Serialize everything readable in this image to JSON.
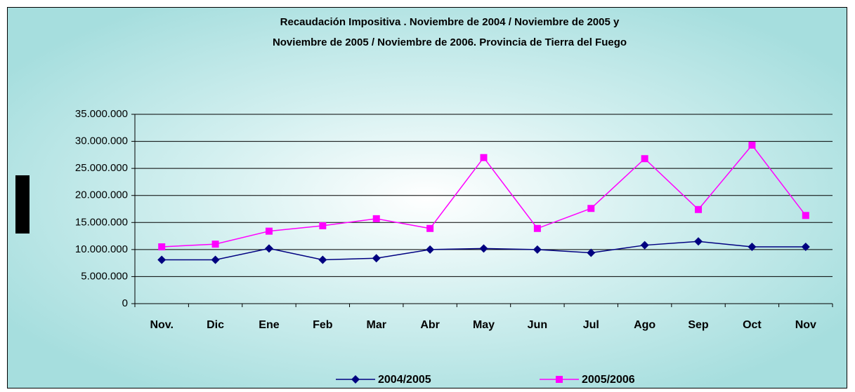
{
  "chart_data": {
    "type": "line",
    "title": [
      "Recaudación Impositiva . Noviembre de 2004 / Noviembre de 2005 y",
      "Noviembre de 2005 / Noviembre de 2006. Provincia de Tierra del Fuego"
    ],
    "categories": [
      "Nov.",
      "Dic",
      "Ene",
      "Feb",
      "Mar",
      "Abr",
      "May",
      "Jun",
      "Jul",
      "Ago",
      "Sep",
      "Oct",
      "Nov"
    ],
    "series": [
      {
        "name": "2004/2005",
        "color": "#000080",
        "marker": "diamond",
        "values": [
          8100000,
          8100000,
          10200000,
          8100000,
          8400000,
          10000000,
          10200000,
          10000000,
          9400000,
          10800000,
          11500000,
          10500000,
          10500000
        ]
      },
      {
        "name": "2005/2006",
        "color": "#ff00ff",
        "marker": "square",
        "values": [
          10500000,
          11000000,
          13400000,
          14400000,
          15700000,
          13900000,
          27000000,
          13900000,
          17600000,
          26800000,
          17400000,
          29300000,
          16300000
        ]
      }
    ],
    "ylim": [
      0,
      35000000
    ],
    "yticks": [
      0,
      {
        "value": 5000000,
        "label": "5.000.000"
      },
      {
        "value": 10000000,
        "label": "10.000.000"
      },
      {
        "value": 15000000,
        "label": "15.000.000"
      },
      {
        "value": 20000000,
        "label": "20.000.000"
      },
      {
        "value": 25000000,
        "label": "25.000.000"
      },
      {
        "value": 30000000,
        "label": "30.000.000"
      },
      {
        "value": 35000000,
        "label": "35.000.000"
      }
    ],
    "grid": true,
    "legend": "bottom"
  }
}
